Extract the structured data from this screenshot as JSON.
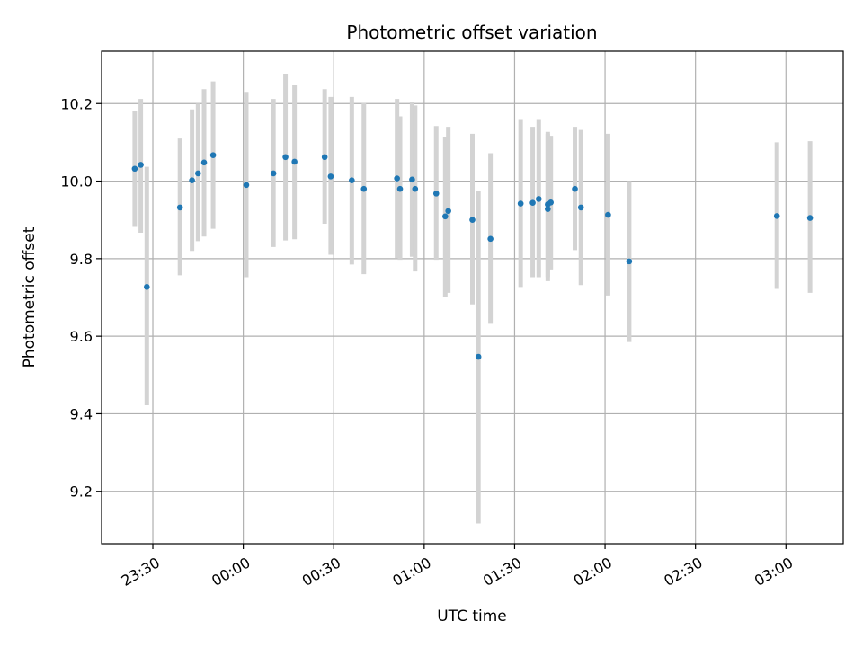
{
  "chart_data": {
    "type": "scatter",
    "title": "Photometric offset variation",
    "xlabel": "UTC time",
    "ylabel": "Photometric offset",
    "grid": true,
    "legend": "none",
    "xlim_minutes_from_2330": [
      -17,
      229
    ],
    "ylim": [
      9.065,
      10.335
    ],
    "x_ticks": [
      "23:30",
      "00:00",
      "00:30",
      "01:00",
      "01:30",
      "02:00",
      "02:30",
      "03:00"
    ],
    "y_ticks": [
      9.2,
      9.4,
      9.6,
      9.8,
      10.0,
      10.2
    ],
    "y_tick_labels": [
      "9.2",
      "9.4",
      "9.6",
      "9.8",
      "10.0",
      "10.2"
    ],
    "point_color": "#1f77b4",
    "errorbar_color": "#d3d3d3",
    "points": [
      {
        "t": "23:24",
        "y": 10.032,
        "lo": 9.882,
        "hi": 10.182
      },
      {
        "t": "23:26",
        "y": 10.042,
        "lo": 9.867,
        "hi": 10.212
      },
      {
        "t": "23:28",
        "y": 9.727,
        "lo": 9.422,
        "hi": 10.037
      },
      {
        "t": "23:39",
        "y": 9.932,
        "lo": 9.757,
        "hi": 10.11
      },
      {
        "t": "23:43",
        "y": 10.002,
        "lo": 9.82,
        "hi": 10.185
      },
      {
        "t": "23:45",
        "y": 10.02,
        "lo": 9.845,
        "hi": 10.2
      },
      {
        "t": "23:47",
        "y": 10.048,
        "lo": 9.857,
        "hi": 10.237
      },
      {
        "t": "23:50",
        "y": 10.067,
        "lo": 9.877,
        "hi": 10.257
      },
      {
        "t": "00:01",
        "y": 9.99,
        "lo": 9.752,
        "hi": 10.23
      },
      {
        "t": "00:10",
        "y": 10.02,
        "lo": 9.83,
        "hi": 10.212
      },
      {
        "t": "00:14",
        "y": 10.062,
        "lo": 9.847,
        "hi": 10.277
      },
      {
        "t": "00:17",
        "y": 10.05,
        "lo": 9.85,
        "hi": 10.247
      },
      {
        "t": "00:27",
        "y": 10.062,
        "lo": 9.89,
        "hi": 10.237
      },
      {
        "t": "00:29",
        "y": 10.012,
        "lo": 9.81,
        "hi": 10.217
      },
      {
        "t": "00:36",
        "y": 10.002,
        "lo": 9.785,
        "hi": 10.217
      },
      {
        "t": "00:40",
        "y": 9.98,
        "lo": 9.76,
        "hi": 10.202
      },
      {
        "t": "00:51",
        "y": 10.007,
        "lo": 9.802,
        "hi": 10.212
      },
      {
        "t": "00:52",
        "y": 9.98,
        "lo": 9.797,
        "hi": 10.167
      },
      {
        "t": "00:56",
        "y": 10.004,
        "lo": 9.805,
        "hi": 10.205
      },
      {
        "t": "00:57",
        "y": 9.98,
        "lo": 9.767,
        "hi": 10.195
      },
      {
        "t": "01:04",
        "y": 9.968,
        "lo": 9.797,
        "hi": 10.142
      },
      {
        "t": "01:07",
        "y": 9.909,
        "lo": 9.702,
        "hi": 10.114
      },
      {
        "t": "01:08",
        "y": 9.923,
        "lo": 9.712,
        "hi": 10.14
      },
      {
        "t": "01:16",
        "y": 9.9,
        "lo": 9.682,
        "hi": 10.122
      },
      {
        "t": "01:18",
        "y": 9.547,
        "lo": 9.117,
        "hi": 9.975
      },
      {
        "t": "01:22",
        "y": 9.851,
        "lo": 9.632,
        "hi": 10.072
      },
      {
        "t": "01:32",
        "y": 9.942,
        "lo": 9.727,
        "hi": 10.16
      },
      {
        "t": "01:36",
        "y": 9.944,
        "lo": 9.752,
        "hi": 10.14
      },
      {
        "t": "01:38",
        "y": 9.954,
        "lo": 9.752,
        "hi": 10.16
      },
      {
        "t": "01:41",
        "y": 9.928,
        "lo": 9.742,
        "hi": 10.127
      },
      {
        "t": "01:41",
        "y": 9.94,
        "lo": 9.752,
        "hi": 10.122
      },
      {
        "t": "01:42",
        "y": 9.945,
        "lo": 9.772,
        "hi": 10.117
      },
      {
        "t": "01:50",
        "y": 9.98,
        "lo": 9.822,
        "hi": 10.14
      },
      {
        "t": "01:52",
        "y": 9.932,
        "lo": 9.732,
        "hi": 10.132
      },
      {
        "t": "02:01",
        "y": 9.913,
        "lo": 9.705,
        "hi": 10.122
      },
      {
        "t": "02:08",
        "y": 9.793,
        "lo": 9.585,
        "hi": 10.0
      },
      {
        "t": "02:57",
        "y": 9.91,
        "lo": 9.722,
        "hi": 10.1
      },
      {
        "t": "03:08",
        "y": 9.905,
        "lo": 9.712,
        "hi": 10.103
      }
    ]
  }
}
